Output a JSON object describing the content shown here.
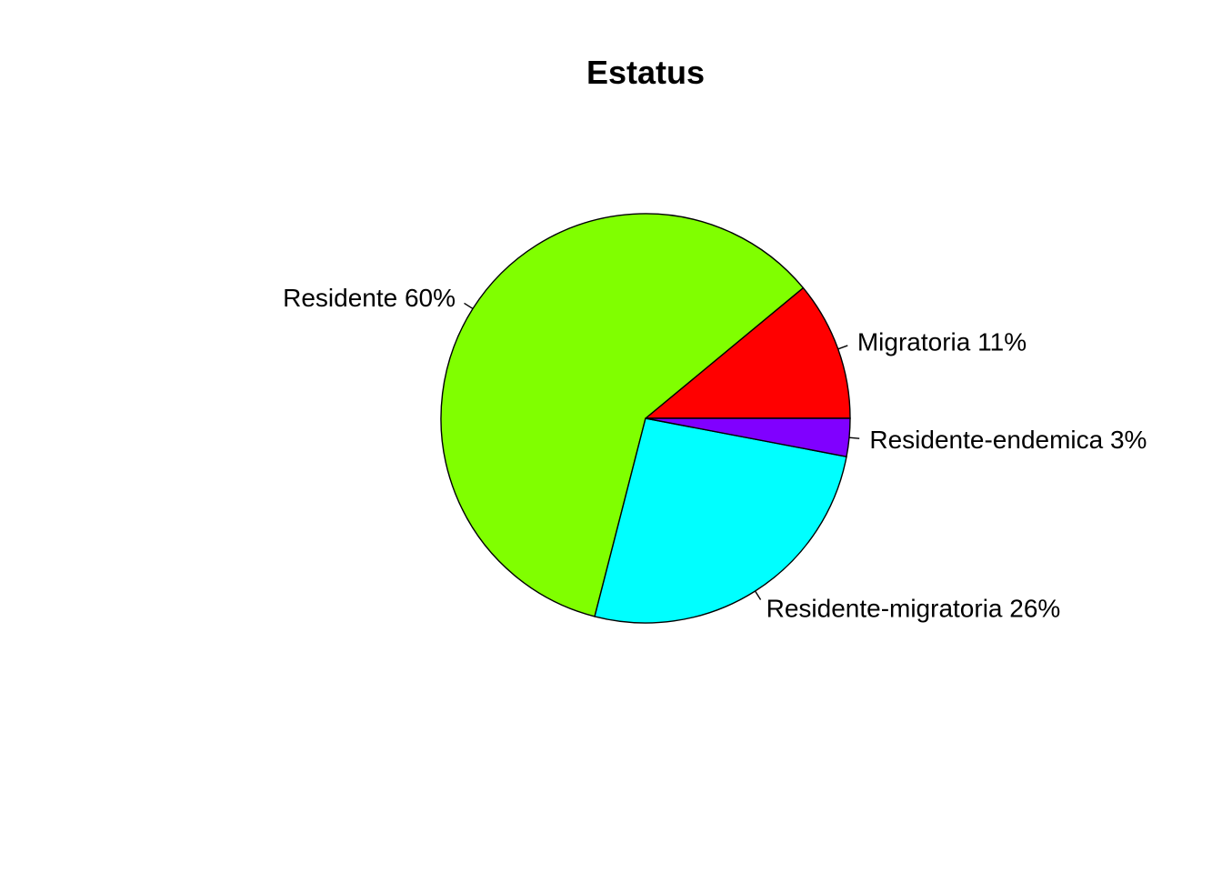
{
  "chart_data": {
    "type": "pie",
    "title": "Estatus",
    "slices": [
      {
        "label": "Migratoria",
        "value": 11,
        "display": "Migratoria 11%",
        "color": "#FF0000"
      },
      {
        "label": "Residente",
        "value": 60,
        "display": "Residente 60%",
        "color": "#80FF00"
      },
      {
        "label": "Residente-migratoria",
        "value": 26,
        "display": "Residente-migratoria 26%",
        "color": "#00FFFF"
      },
      {
        "label": "Residente-endemica",
        "value": 3,
        "display": "Residente-endemica 3%",
        "color": "#8000FF"
      }
    ],
    "direction": "counterclockwise",
    "start_angle_deg": 0,
    "legend": "none"
  }
}
